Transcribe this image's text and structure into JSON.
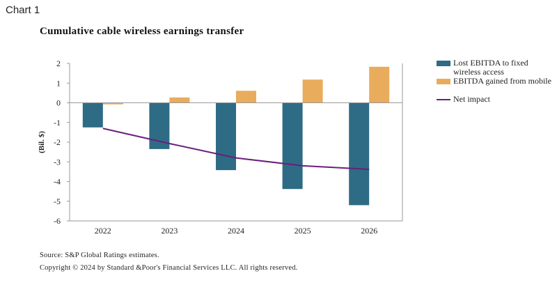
{
  "header": {
    "chart_label": "Chart 1",
    "title": "Cumulative cable wireless earnings transfer"
  },
  "chart_data": {
    "type": "bar",
    "title": "Cumulative cable wireless earnings transfer",
    "xlabel": "",
    "ylabel": "(Bil. $)",
    "ylim": [
      -6,
      2
    ],
    "yticks": [
      2,
      1,
      0,
      -1,
      -2,
      -3,
      -4,
      -5,
      -6
    ],
    "categories": [
      "2022",
      "2023",
      "2024",
      "2025",
      "2026"
    ],
    "series": [
      {
        "name": "Lost EBITDA to fixed wireless access",
        "type": "bar",
        "color": "#2e6b85",
        "values": [
          -1.25,
          -2.35,
          -3.42,
          -4.38,
          -5.2
        ]
      },
      {
        "name": "EBITDA gained from mobile",
        "type": "bar",
        "color": "#e8ac5c",
        "values": [
          -0.08,
          0.27,
          0.61,
          1.18,
          1.83
        ]
      },
      {
        "name": "Net impact",
        "type": "line",
        "color": "#6a1f7a",
        "values": [
          -1.3,
          -2.07,
          -2.8,
          -3.2,
          -3.38
        ]
      }
    ],
    "legend_position": "right"
  },
  "legend": {
    "items": [
      {
        "label": "Lost EBITDA to fixed wireless access"
      },
      {
        "label": "EBITDA gained from mobile"
      },
      {
        "label": "Net impact"
      }
    ]
  },
  "footer": {
    "source": "Source: S&P Global Ratings estimates.",
    "copyright": "Copyright © 2024 by Standard &Poor's Financial Services LLC. All rights reserved."
  }
}
